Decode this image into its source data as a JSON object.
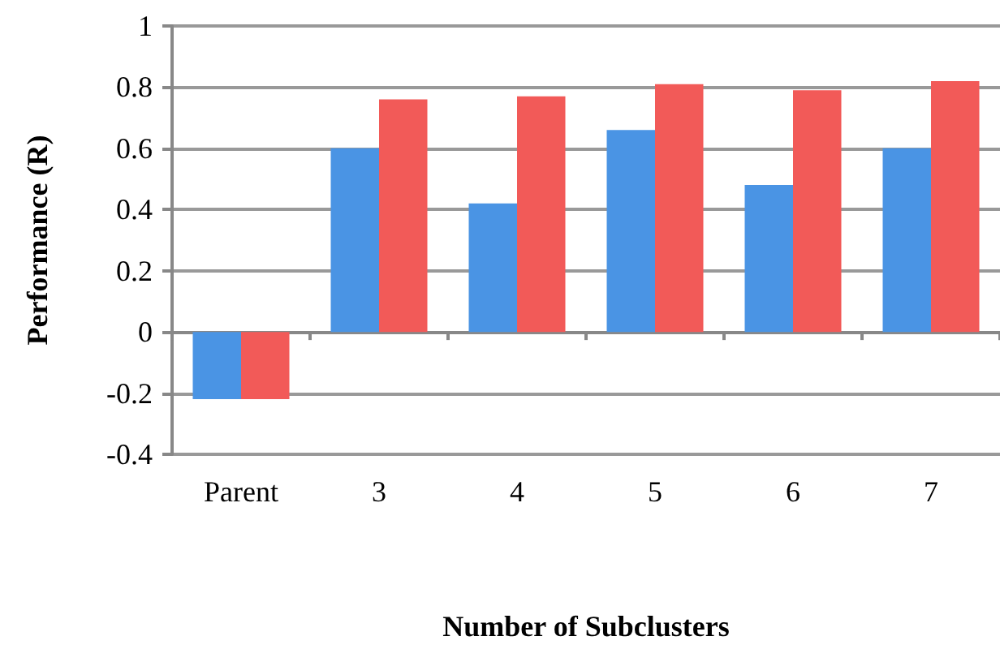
{
  "chart_data": {
    "type": "bar",
    "xlabel": "Number of Subclusters",
    "ylabel": "Performance (R)",
    "categories": [
      "Parent",
      "3",
      "4",
      "5",
      "6",
      "7"
    ],
    "series": [
      {
        "color": "#4a94e4",
        "values": [
          -0.22,
          0.6,
          0.42,
          0.66,
          0.48,
          0.6
        ]
      },
      {
        "color": "#f25a58",
        "values": [
          -0.22,
          0.76,
          0.77,
          0.81,
          0.79,
          0.82
        ]
      }
    ],
    "ylim": [
      -0.4,
      1
    ],
    "yticks": [
      -0.4,
      -0.2,
      0,
      0.2,
      0.4,
      0.6,
      0.8,
      1
    ],
    "grid": "y"
  }
}
